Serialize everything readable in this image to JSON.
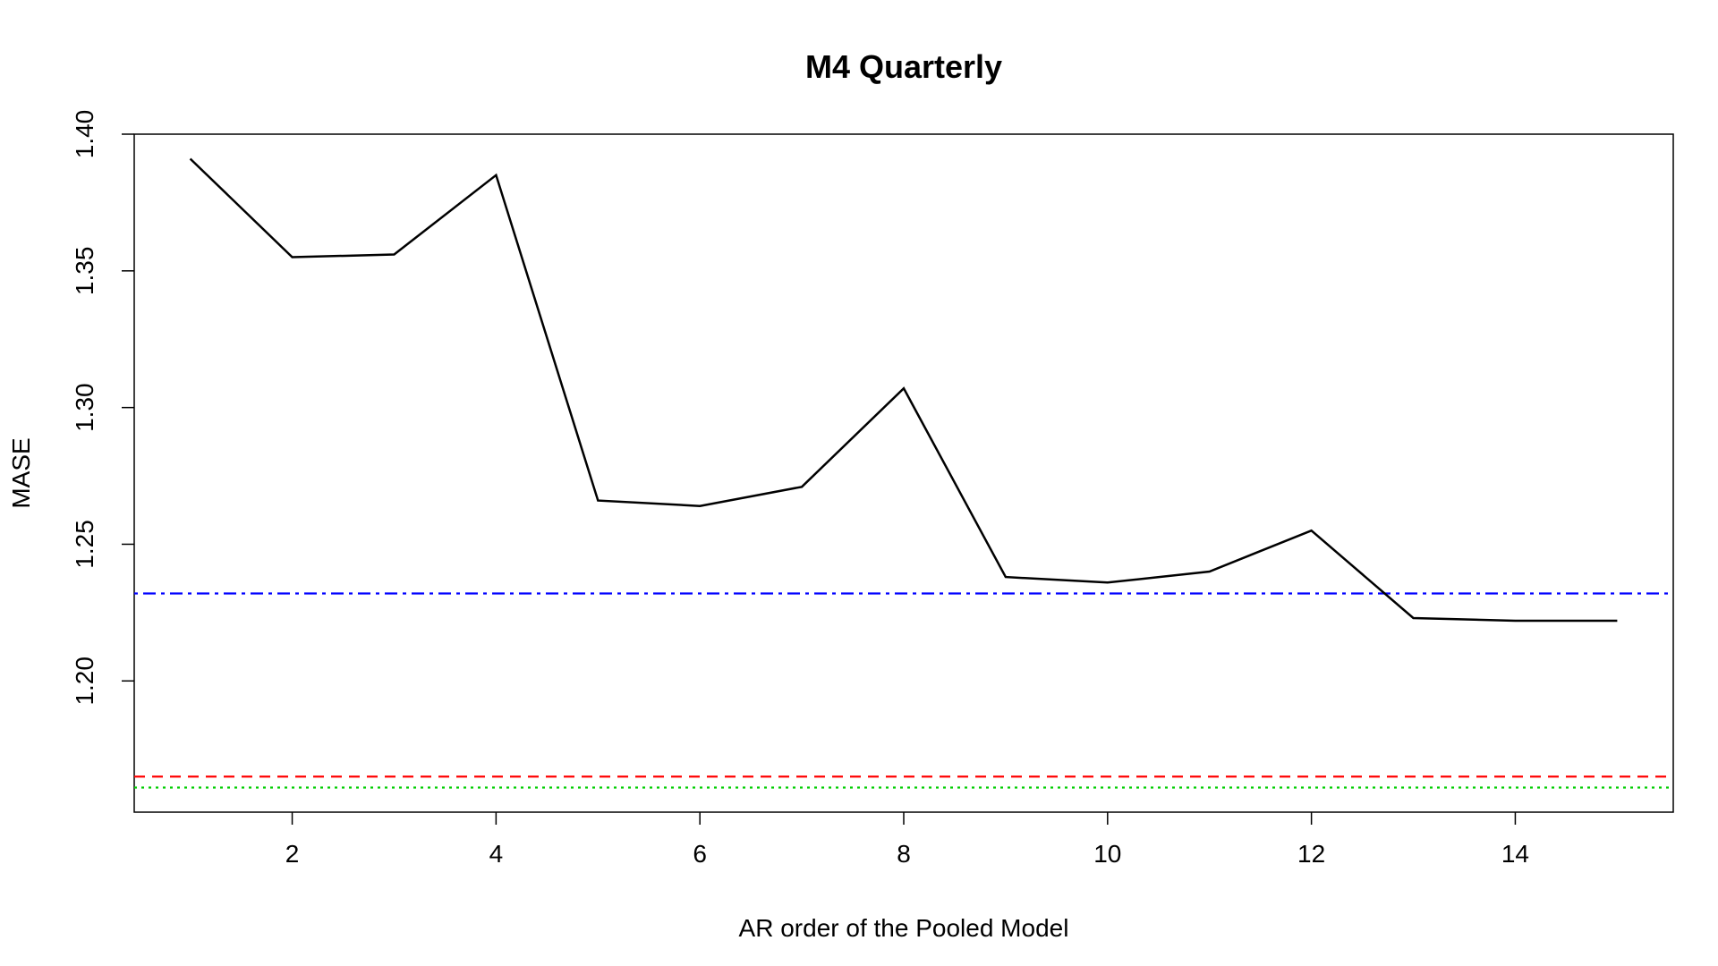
{
  "chart_data": {
    "type": "line",
    "title": "M4 Quarterly",
    "xlabel": "AR order of the Pooled Model",
    "ylabel": "MASE",
    "xlim": [
      0.45,
      15.55
    ],
    "ylim": [
      1.152,
      1.4
    ],
    "x_ticks": [
      2,
      4,
      6,
      8,
      10,
      12,
      14
    ],
    "y_ticks": [
      1.2,
      1.25,
      1.3,
      1.35,
      1.4
    ],
    "y_tick_labels": [
      "1.20",
      "1.25",
      "1.30",
      "1.35",
      "1.40"
    ],
    "grid": false,
    "legend": "none",
    "series": [
      {
        "color": "#000000",
        "style": "solid",
        "x": [
          1,
          2,
          3,
          4,
          5,
          6,
          7,
          8,
          9,
          10,
          11,
          12,
          13,
          14,
          15
        ],
        "y": [
          1.391,
          1.355,
          1.356,
          1.385,
          1.266,
          1.264,
          1.271,
          1.307,
          1.238,
          1.236,
          1.24,
          1.255,
          1.223,
          1.222,
          1.222
        ]
      }
    ],
    "reference_lines": [
      {
        "y": 1.232,
        "color": "#0000ff",
        "style": "dotdash"
      },
      {
        "y": 1.165,
        "color": "#ff0000",
        "style": "dashed"
      },
      {
        "y": 1.161,
        "color": "#00cd00",
        "style": "dotted"
      }
    ]
  }
}
